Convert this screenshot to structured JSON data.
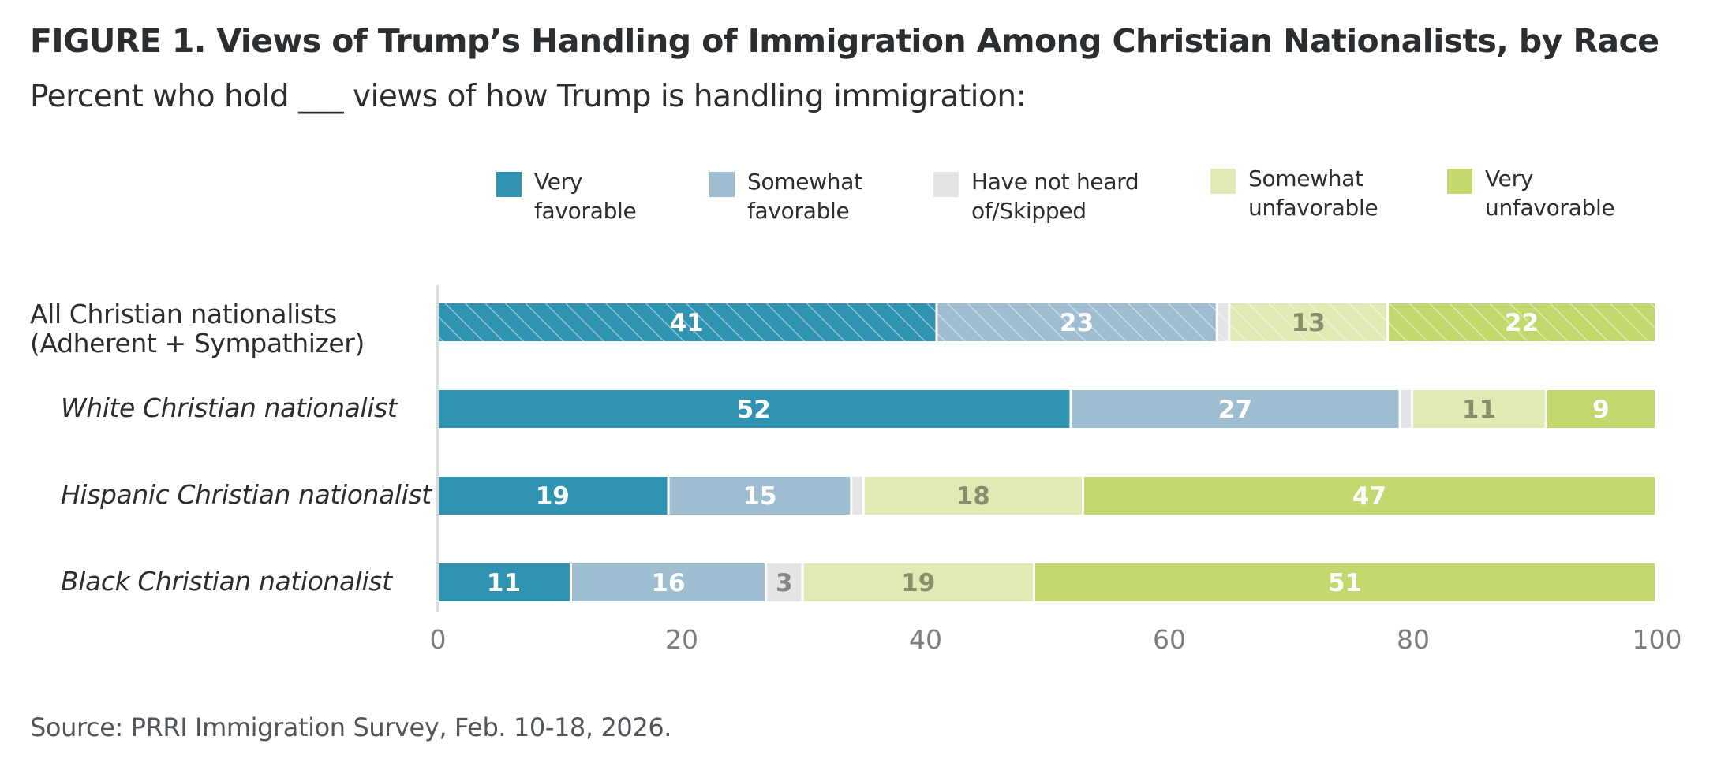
{
  "header": {
    "title": "FIGURE 1.  Views of Trump’s Handling of Immigration Among Christian Nationalists, by Race",
    "subtitle": "Percent who hold ___ views of how Trump is handling immigration:"
  },
  "legend": [
    {
      "label": "Very\nfavorable",
      "color": "#3193b2"
    },
    {
      "label": "Somewhat\nfavorable",
      "color": "#9ebdd0"
    },
    {
      "label": "Have not heard\nof/Skipped",
      "color": "#e3e4e6"
    },
    {
      "label": "Somewhat\nunfavorable",
      "color": "#dfeab4"
    },
    {
      "label": "Very\nunfavorable",
      "color": "#c3d96e"
    }
  ],
  "footer": {
    "source": "Source: PRRI Immigration Survey, Feb. 10-18, 2026."
  },
  "chart_data": {
    "type": "bar",
    "orientation": "horizontal",
    "stacked": true,
    "title": "FIGURE 1.  Views of Trump’s Handling of Immigration Among Christian Nationalists, by Race",
    "subtitle": "Percent who hold ___ views of how Trump is handling immigration:",
    "xlabel": "",
    "ylabel": "",
    "xlim": [
      0,
      100
    ],
    "x_ticks": [
      0,
      20,
      40,
      60,
      80,
      100
    ],
    "grid": false,
    "legend_position": "top",
    "categories": [
      {
        "label": "All Christian nationalists\n(Adherent + Sympathizer)",
        "italic": false,
        "hatched": true
      },
      {
        "label": "White Christian nationalist",
        "italic": true,
        "hatched": false
      },
      {
        "label": "Hispanic Christian nationalist",
        "italic": true,
        "hatched": false
      },
      {
        "label": "Black Christian nationalist",
        "italic": true,
        "hatched": false
      }
    ],
    "series": [
      {
        "name": "Very favorable",
        "color": "#3193b2",
        "label_color": "#ffffff",
        "values": [
          41,
          52,
          19,
          11
        ],
        "show_labels": [
          true,
          true,
          true,
          true
        ]
      },
      {
        "name": "Somewhat favorable",
        "color": "#9ebdd0",
        "label_color": "#ffffff",
        "values": [
          23,
          27,
          15,
          16
        ],
        "show_labels": [
          true,
          true,
          true,
          true
        ]
      },
      {
        "name": "Have not heard of/Skipped",
        "color": "#e3e4e6",
        "label_color": "#858585",
        "values": [
          1,
          1,
          1,
          3
        ],
        "show_labels": [
          false,
          false,
          false,
          true
        ]
      },
      {
        "name": "Somewhat unfavorable",
        "color": "#dfeab4",
        "label_color": "#8a8c6b",
        "values": [
          13,
          11,
          18,
          19
        ],
        "show_labels": [
          true,
          true,
          true,
          true
        ]
      },
      {
        "name": "Very unfavorable",
        "color": "#c3d96e",
        "label_color": "#ffffff",
        "values": [
          22,
          9,
          47,
          51
        ],
        "show_labels": [
          true,
          true,
          true,
          true
        ]
      }
    ]
  }
}
